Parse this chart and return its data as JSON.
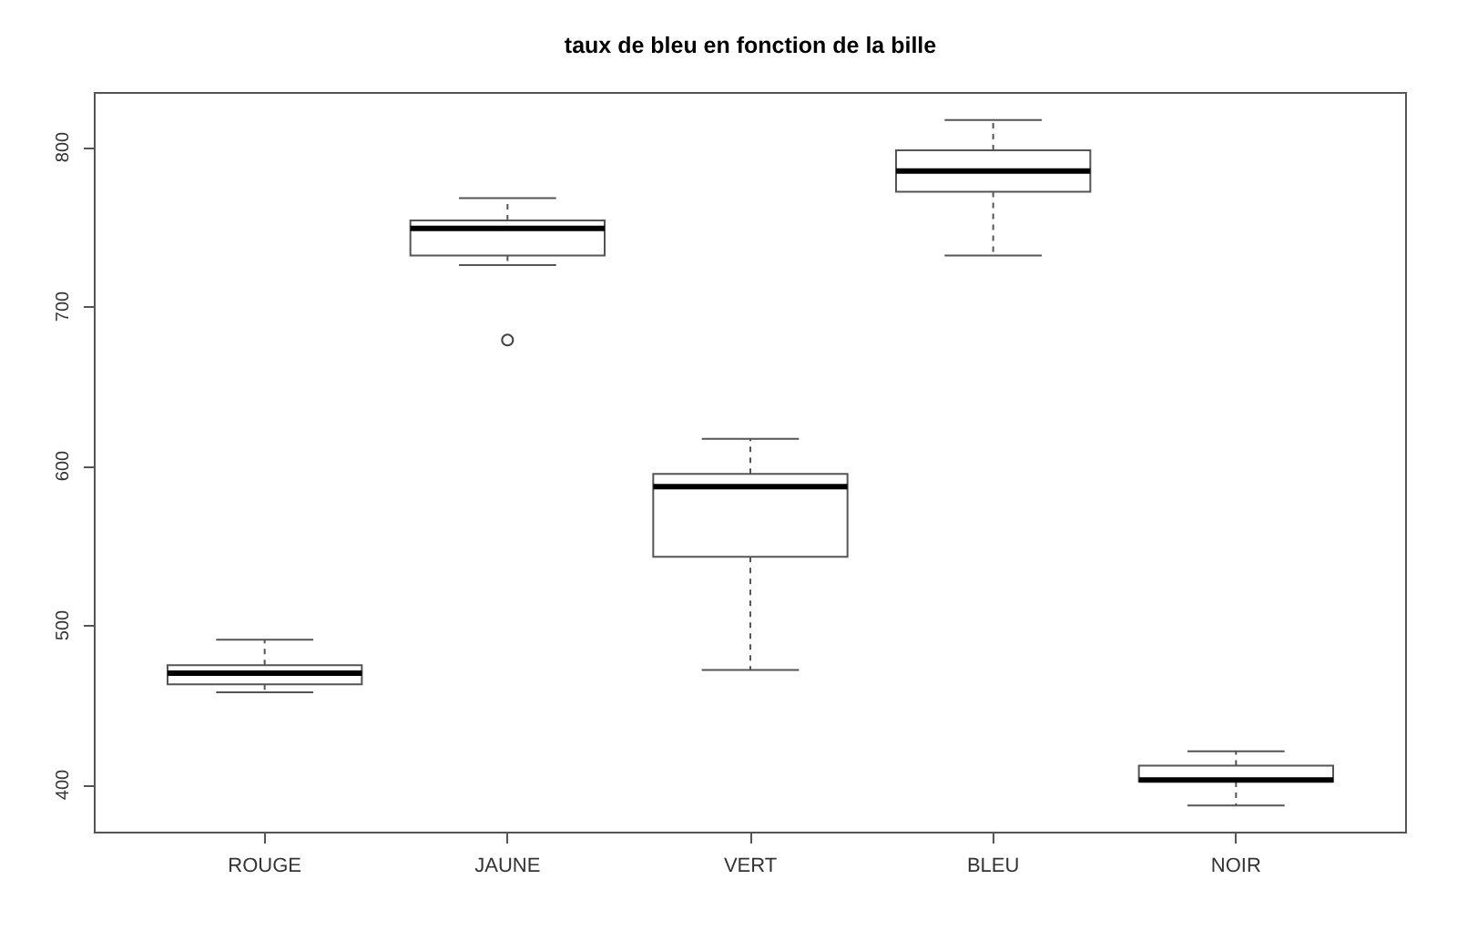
{
  "chart_data": {
    "type": "box",
    "title": "taux de bleu en fonction de la bille",
    "categories": [
      "ROUGE",
      "JAUNE",
      "VERT",
      "BLEU",
      "NOIR"
    ],
    "boxes": [
      {
        "low": 458,
        "q1": 463,
        "median": 470,
        "q3": 475,
        "high": 491
      },
      {
        "low": 726,
        "q1": 732,
        "median": 749,
        "q3": 754,
        "high": 768,
        "outliers": [
          679
        ]
      },
      {
        "low": 472,
        "q1": 543,
        "median": 587,
        "q3": 595,
        "high": 617
      },
      {
        "low": 732,
        "q1": 772,
        "median": 785,
        "q3": 798,
        "high": 817
      },
      {
        "low": 387,
        "q1": 402,
        "median": 403,
        "q3": 412,
        "high": 421
      }
    ],
    "ylim": [
      370,
      834
    ],
    "yticks": [
      400,
      500,
      600,
      700,
      800
    ]
  }
}
